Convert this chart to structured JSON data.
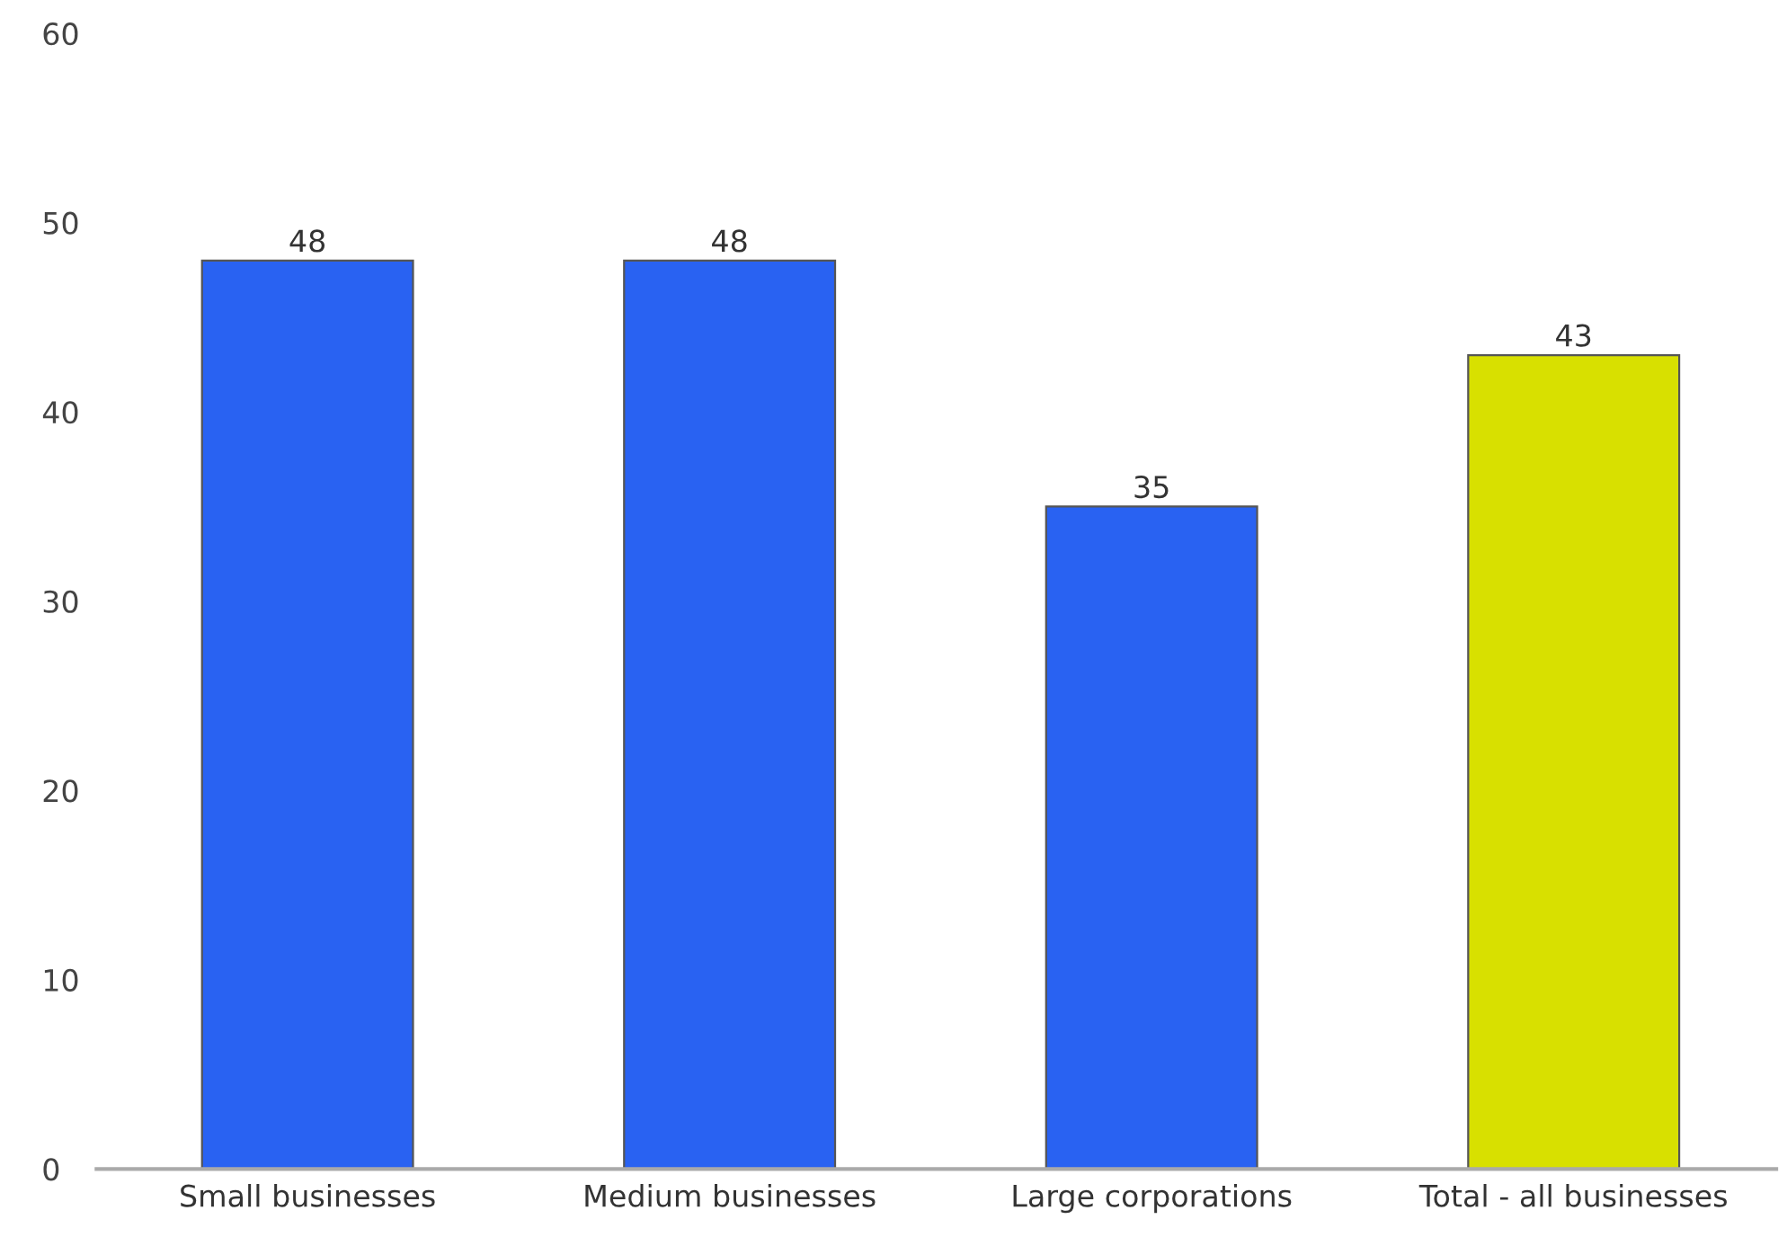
{
  "chart_data": {
    "type": "bar",
    "categories": [
      "Small businesses",
      "Medium businesses",
      "Large corporations",
      "Total - all businesses"
    ],
    "values": [
      48,
      48,
      35,
      43
    ],
    "colors": [
      "#2962f2",
      "#2962f2",
      "#2962f2",
      "#d8e000"
    ],
    "ylim": [
      0,
      60
    ],
    "yticks": [
      0,
      10,
      20,
      30,
      40,
      50,
      60
    ],
    "grid": false,
    "data_labels": true
  }
}
